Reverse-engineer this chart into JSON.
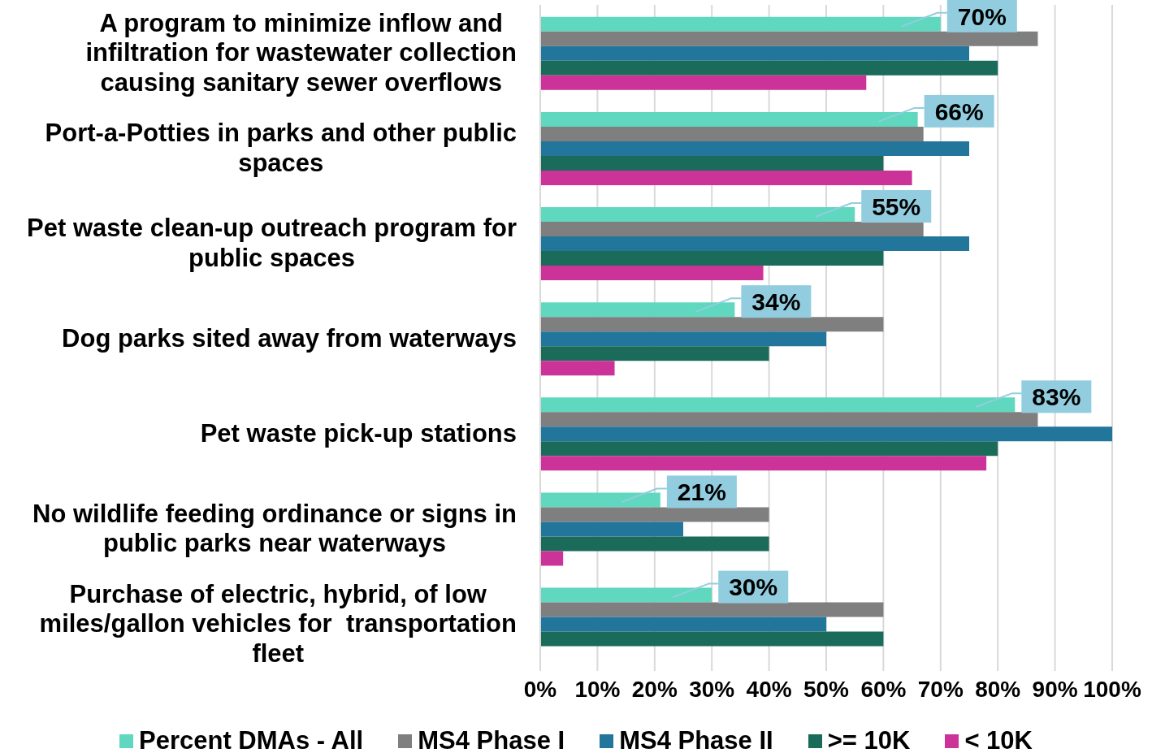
{
  "chart_data": {
    "type": "bar",
    "orientation": "horizontal",
    "categories": [
      "A program to minimize inflow and infiltration for wastewater collection causing sanitary sewer overflows",
      "Port-a-Potties in parks and other public spaces",
      "Pet waste clean-up outreach program for public spaces",
      "Dog parks sited away from waterways",
      "Pet waste pick-up stations",
      "No wildlife feeding ordinance or signs in public parks near waterways",
      "Purchase of electric, hybrid, of low miles/gallon vehicles for  transportation fleet"
    ],
    "series": [
      {
        "name": "Percent DMAs - All",
        "color": "#5fd8bf",
        "values": [
          70,
          66,
          55,
          34,
          83,
          21,
          30
        ],
        "value_labels": [
          "70%",
          "66%",
          "55%",
          "34%",
          "83%",
          "21%",
          "30%"
        ]
      },
      {
        "name": "MS4 Phase I",
        "color": "#7f7f7f",
        "values": [
          87,
          67,
          67,
          60,
          87,
          40,
          60
        ]
      },
      {
        "name": "MS4 Phase II",
        "color": "#22759b",
        "values": [
          75,
          75,
          75,
          50,
          100,
          25,
          50
        ]
      },
      {
        "name": ">= 10K",
        "color": "#1b6b5a",
        "values": [
          80,
          60,
          60,
          40,
          80,
          40,
          60
        ]
      },
      {
        "name": "< 10K",
        "color": "#cc3399",
        "values": [
          57,
          65,
          39,
          13,
          78,
          4,
          null
        ]
      }
    ],
    "xlim": [
      0,
      100
    ],
    "xticks": [
      {
        "value": 0,
        "label": "0%"
      },
      {
        "value": 10,
        "label": "10%"
      },
      {
        "value": 20,
        "label": "20%"
      },
      {
        "value": 30,
        "label": "30%"
      },
      {
        "value": 40,
        "label": "40%"
      },
      {
        "value": 50,
        "label": "50%"
      },
      {
        "value": 60,
        "label": "60%"
      },
      {
        "value": 70,
        "label": "70%"
      },
      {
        "value": 80,
        "label": "80%"
      },
      {
        "value": 90,
        "label": "90%"
      },
      {
        "value": 100,
        "label": "100%"
      }
    ],
    "grid": "x",
    "legend": "bottom"
  }
}
